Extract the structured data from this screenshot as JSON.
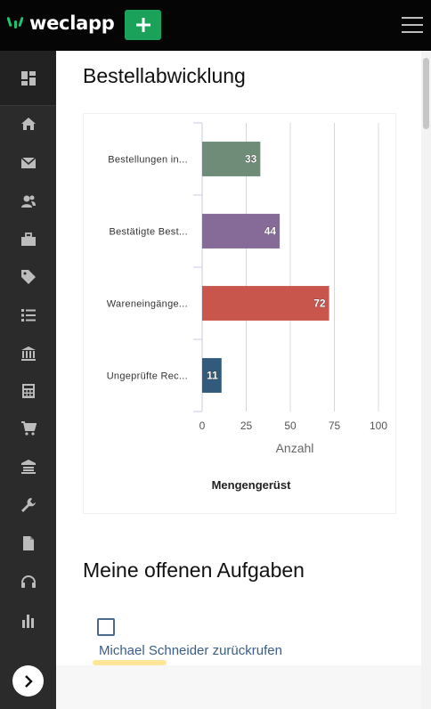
{
  "app": {
    "name": "weclapp",
    "brand_color": "#1aa15a"
  },
  "header": {
    "add_icon": "plus-icon",
    "menu_icon": "hamburger-icon"
  },
  "sidebar": {
    "items": [
      {
        "name": "dashboard",
        "icon": "dashboard-icon"
      },
      {
        "name": "home",
        "icon": "home-icon"
      },
      {
        "name": "mail",
        "icon": "mail-icon"
      },
      {
        "name": "contacts",
        "icon": "contacts-icon"
      },
      {
        "name": "sales",
        "icon": "briefcase-icon"
      },
      {
        "name": "products",
        "icon": "tag-icon"
      },
      {
        "name": "lists",
        "icon": "list-icon"
      },
      {
        "name": "bank",
        "icon": "bank-icon"
      },
      {
        "name": "accounting",
        "icon": "calculator-icon"
      },
      {
        "name": "cart",
        "icon": "cart-icon"
      },
      {
        "name": "warehouse",
        "icon": "warehouse-icon"
      },
      {
        "name": "service",
        "icon": "wrench-icon"
      },
      {
        "name": "documents",
        "icon": "document-icon"
      },
      {
        "name": "support",
        "icon": "headset-icon"
      },
      {
        "name": "reports",
        "icon": "bar-chart-icon"
      }
    ],
    "expand_icon": "chevron-right-icon"
  },
  "main": {
    "section1_title": "Bestellabwicklung",
    "section2_title": "Meine offenen Aufgaben",
    "tasks": [
      {
        "label": "Michael Schneider zurückrufen"
      }
    ]
  },
  "chart_data": {
    "type": "bar",
    "orientation": "horizontal",
    "categories": [
      "Bestellungen in...",
      "Bestätigte Best...",
      "Wareneingänge...",
      "Ungeprüfte Rec..."
    ],
    "values": [
      33,
      44,
      72,
      11
    ],
    "colors": [
      "#6e8c78",
      "#866a98",
      "#c9564c",
      "#325a7c"
    ],
    "xlabel": "Anzahl",
    "ylabel": "",
    "xlim": [
      0,
      100
    ],
    "xticks": [
      0,
      25,
      50,
      75,
      100
    ],
    "legend_title": "Mengengerüst",
    "grid": true
  }
}
